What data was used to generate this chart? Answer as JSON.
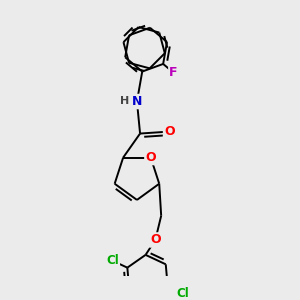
{
  "background_color": "#ebebeb",
  "bond_color": "#000000",
  "atom_colors": {
    "O": "#ff0000",
    "N": "#0000cd",
    "Cl": "#00aa00",
    "F": "#bb00bb",
    "H": "#444444",
    "C": "#000000"
  },
  "lw": 1.4,
  "figsize": [
    3.0,
    3.0
  ],
  "dpi": 100
}
